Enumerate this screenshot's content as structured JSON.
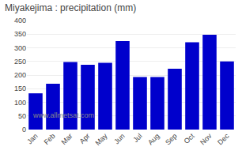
{
  "chart_data": {
    "type": "bar",
    "title": "Miyakejima : precipitation (mm)",
    "categories": [
      "Jan",
      "Feb",
      "Mar",
      "Apr",
      "May",
      "Jun",
      "Jul",
      "Aug",
      "Sep",
      "Oct",
      "Nov",
      "Dec"
    ],
    "values": [
      133,
      168,
      248,
      238,
      245,
      325,
      193,
      193,
      223,
      320,
      348,
      250
    ],
    "color": "#0000CC",
    "ylim": [
      0,
      400
    ],
    "yticks": [
      0,
      50,
      100,
      150,
      200,
      250,
      300,
      350,
      400
    ],
    "grid": true,
    "annotations": [
      "www.allmetsat.com"
    ]
  }
}
